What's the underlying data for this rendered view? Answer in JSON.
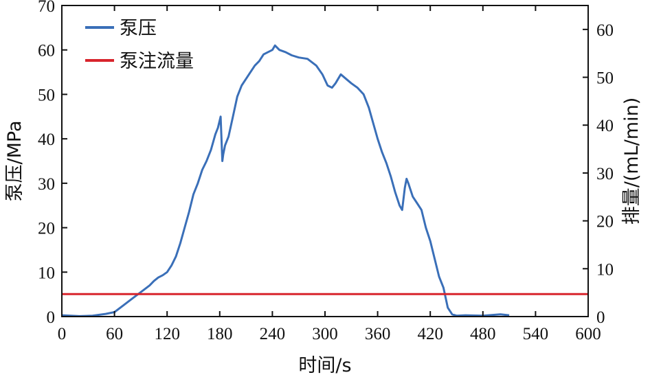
{
  "chart_data": {
    "type": "line",
    "xlabel": "时间/s",
    "ylabel_left": "泵压/MPa",
    "ylabel_right": "排量/(mL/min)",
    "xlim": [
      0,
      600
    ],
    "ylim_left": [
      0,
      70
    ],
    "ylim_right": [
      0,
      65
    ],
    "x_ticks": [
      0,
      60,
      120,
      180,
      240,
      300,
      360,
      420,
      480,
      540,
      600
    ],
    "y_left_ticks": [
      0,
      10,
      20,
      30,
      40,
      50,
      60,
      70
    ],
    "y_right_ticks": [
      0,
      10,
      20,
      30,
      40,
      50,
      60
    ],
    "grid": false,
    "legend_position": "top-left",
    "series": [
      {
        "name": "泵压",
        "axis": "left",
        "color": "#3a6fb8",
        "x": [
          0,
          20,
          35,
          50,
          60,
          70,
          80,
          90,
          100,
          105,
          110,
          115,
          120,
          125,
          130,
          135,
          140,
          145,
          150,
          155,
          160,
          165,
          170,
          175,
          178,
          181,
          183,
          184,
          186,
          190,
          195,
          200,
          205,
          210,
          215,
          220,
          225,
          230,
          235,
          240,
          243,
          248,
          255,
          262,
          270,
          280,
          290,
          297,
          303,
          308,
          312,
          318,
          324,
          330,
          337,
          344,
          350,
          355,
          360,
          365,
          370,
          375,
          380,
          385,
          388,
          391,
          393,
          395,
          400,
          405,
          410,
          415,
          420,
          425,
          430,
          435,
          440,
          445,
          450,
          460,
          480,
          500,
          510
        ],
        "y": [
          0.3,
          0.1,
          0.2,
          0.6,
          1.0,
          2.5,
          4.0,
          5.5,
          7.0,
          8.0,
          8.8,
          9.3,
          10.0,
          11.5,
          13.5,
          16.5,
          20.0,
          23.5,
          27.5,
          30.0,
          33.0,
          35.0,
          37.5,
          41.0,
          42.5,
          45.0,
          35.0,
          36.5,
          38.5,
          40.5,
          45.0,
          49.5,
          52.0,
          53.5,
          55.0,
          56.5,
          57.5,
          59.0,
          59.5,
          60.0,
          61.0,
          60.0,
          59.5,
          58.8,
          58.3,
          58.0,
          56.5,
          54.5,
          52.0,
          51.5,
          52.5,
          54.5,
          53.5,
          52.5,
          51.5,
          50.0,
          47.0,
          43.5,
          40.0,
          37.0,
          34.5,
          31.5,
          28.0,
          25.0,
          24.0,
          29.0,
          31.0,
          30.0,
          27.0,
          25.5,
          24.0,
          20.0,
          17.0,
          13.0,
          9.0,
          6.5,
          2.0,
          0.5,
          0.2,
          0.3,
          0.2,
          0.5,
          0.3
        ]
      },
      {
        "name": "泵注流量",
        "axis": "right",
        "color": "#d8242c",
        "x": [
          0,
          600
        ],
        "y": [
          4.7,
          4.7
        ]
      }
    ]
  }
}
